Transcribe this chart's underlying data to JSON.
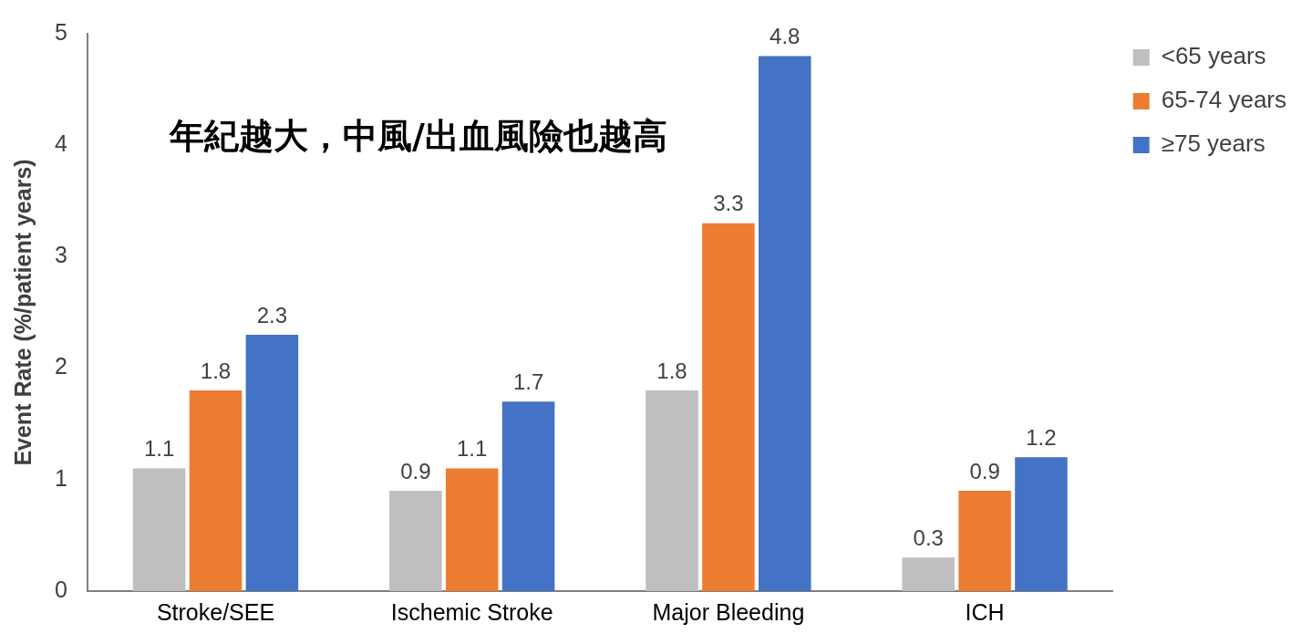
{
  "chart_data": {
    "type": "bar",
    "title": "年紀越大，中風/出血風險也越高",
    "ylabel": "Event Rate (%/patient years)",
    "categories": [
      "Stroke/SEE",
      "Ischemic Stroke",
      "Major Bleeding",
      "ICH"
    ],
    "series": [
      {
        "name": "<65 years",
        "color": "#bfbfbf",
        "values": [
          1.1,
          0.9,
          1.8,
          0.3
        ]
      },
      {
        "name": "65-74 years",
        "color": "#ed7d31",
        "values": [
          1.8,
          1.1,
          3.3,
          0.9
        ]
      },
      {
        "name": "≥75 years",
        "color": "#4472c4",
        "values": [
          2.3,
          1.7,
          4.8,
          1.2
        ]
      }
    ],
    "ylim": [
      0,
      5
    ],
    "yticks": [
      0,
      1,
      2,
      3,
      4,
      5
    ],
    "grid": false,
    "legend": "top right",
    "data_labels": true
  }
}
